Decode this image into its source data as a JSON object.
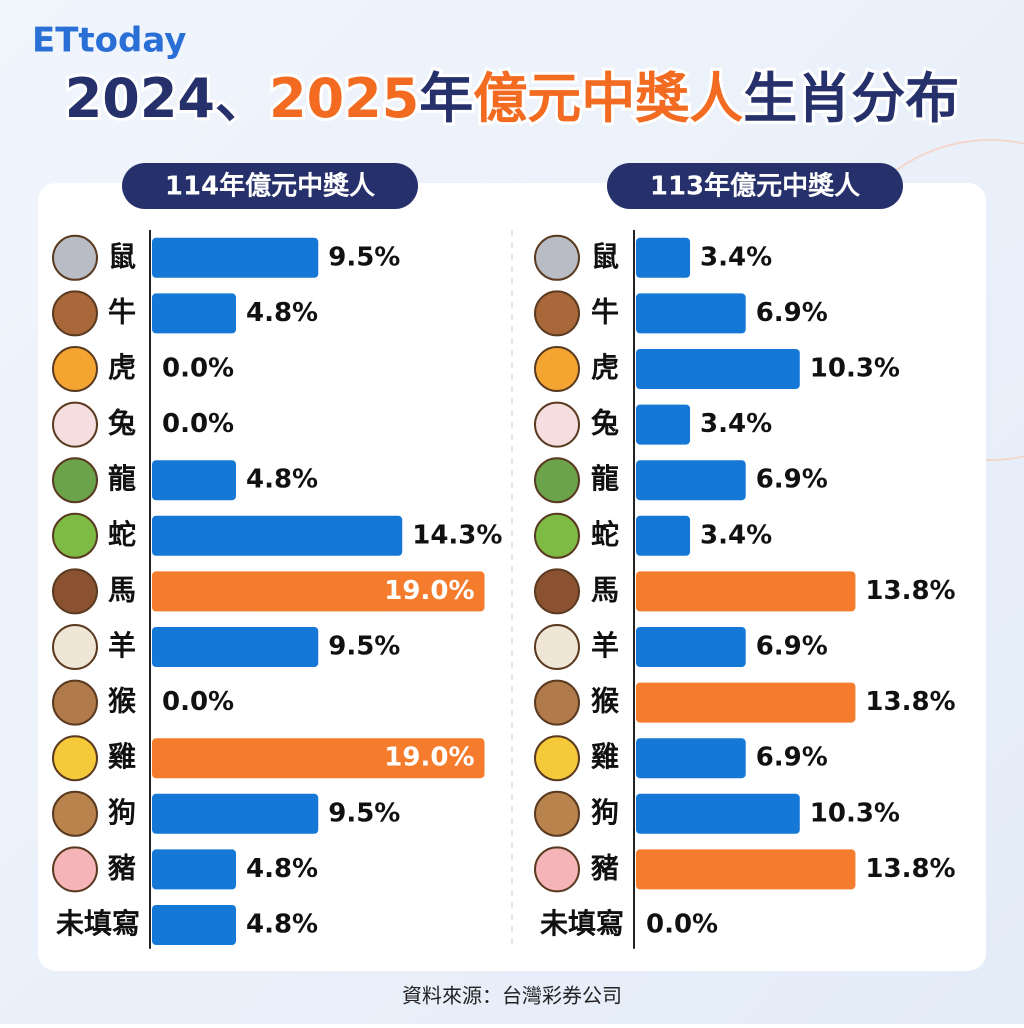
{
  "logo": "ETtoday",
  "title": [
    "2024、",
    "2025",
    "年",
    "億元中獎人",
    "生肖分布"
  ],
  "source": "資料來源：台灣彩券公司",
  "chart_data": [
    {
      "type": "bar",
      "orientation": "horizontal",
      "subtitle": "114年億元中獎人",
      "categories": [
        "鼠",
        "牛",
        "虎",
        "兔",
        "龍",
        "蛇",
        "馬",
        "羊",
        "猴",
        "雞",
        "狗",
        "豬",
        "未填寫"
      ],
      "values": [
        9.5,
        4.8,
        0,
        0,
        4.8,
        14.3,
        19,
        9.5,
        0,
        19,
        9.5,
        4.8,
        4.8
      ],
      "value_labels": [
        "9.5%",
        "4.8%",
        "0.0%",
        "0.0%",
        "4.8%",
        "14.3%",
        "19.0%",
        "9.5%",
        "0.0%",
        "19.0%",
        "9.5%",
        "4.8%",
        "4.8%"
      ],
      "colors": [
        "#1577d6",
        "#1577d6",
        "#1577d6",
        "#1577d6",
        "#1577d6",
        "#1577d6",
        "#f47c2c",
        "#1577d6",
        "#1577d6",
        "#f47c2c",
        "#1577d6",
        "#1577d6",
        "#1577d6"
      ],
      "xlim": [
        0,
        20
      ]
    },
    {
      "type": "bar",
      "orientation": "horizontal",
      "subtitle": "113年億元中獎人",
      "categories": [
        "鼠",
        "牛",
        "虎",
        "兔",
        "龍",
        "蛇",
        "馬",
        "羊",
        "猴",
        "雞",
        "狗",
        "豬",
        "未填寫"
      ],
      "values": [
        3.4,
        6.9,
        10.3,
        3.4,
        6.9,
        3.4,
        13.8,
        6.9,
        13.8,
        6.9,
        10.3,
        13.8,
        0
      ],
      "value_labels": [
        "3.4%",
        "6.9%",
        "10.3%",
        "3.4%",
        "6.9%",
        "3.4%",
        "13.8%",
        "6.9%",
        "13.8%",
        "6.9%",
        "10.3%",
        "13.8%",
        "0.0%"
      ],
      "colors": [
        "#1577d6",
        "#1577d6",
        "#1577d6",
        "#1577d6",
        "#1577d6",
        "#1577d6",
        "#f47c2c",
        "#1577d6",
        "#f47c2c",
        "#1577d6",
        "#1577d6",
        "#f47c2c",
        "#1577d6"
      ],
      "xlim": [
        0,
        20
      ]
    }
  ]
}
